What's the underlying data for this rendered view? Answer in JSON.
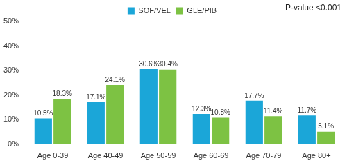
{
  "chart_data": {
    "type": "bar",
    "annotation": "P-value <0.001",
    "categories": [
      "Age 0-39",
      "Age 40-49",
      "Age 50-59",
      "Age 60-69",
      "Age 70-79",
      "Age 80+"
    ],
    "series": [
      {
        "name": "SOF/VEL",
        "color": "#1ba6d8",
        "values": [
          10.5,
          17.1,
          30.6,
          12.3,
          17.7,
          11.7
        ],
        "value_labels": [
          "10.5%",
          "17.1%",
          "30.6%",
          "12.3%",
          "17.7%",
          "11.7%"
        ]
      },
      {
        "name": "GLE/PIB",
        "color": "#7dc243",
        "values": [
          18.3,
          24.1,
          30.4,
          10.8,
          11.4,
          5.1
        ],
        "value_labels": [
          "18.3%",
          "24.1%",
          "30.4%",
          "10.8%",
          "11.4%",
          "5.1%"
        ]
      }
    ],
    "ylim": [
      0,
      50
    ],
    "yticks": [
      {
        "value": 0,
        "label": "0%"
      },
      {
        "value": 10,
        "label": "10%"
      },
      {
        "value": 20,
        "label": "20%"
      },
      {
        "value": 30,
        "label": "30%"
      },
      {
        "value": 40,
        "label": "40%"
      },
      {
        "value": 50,
        "label": "50%"
      }
    ],
    "grid": false,
    "legend": "top",
    "data_labels": true
  }
}
